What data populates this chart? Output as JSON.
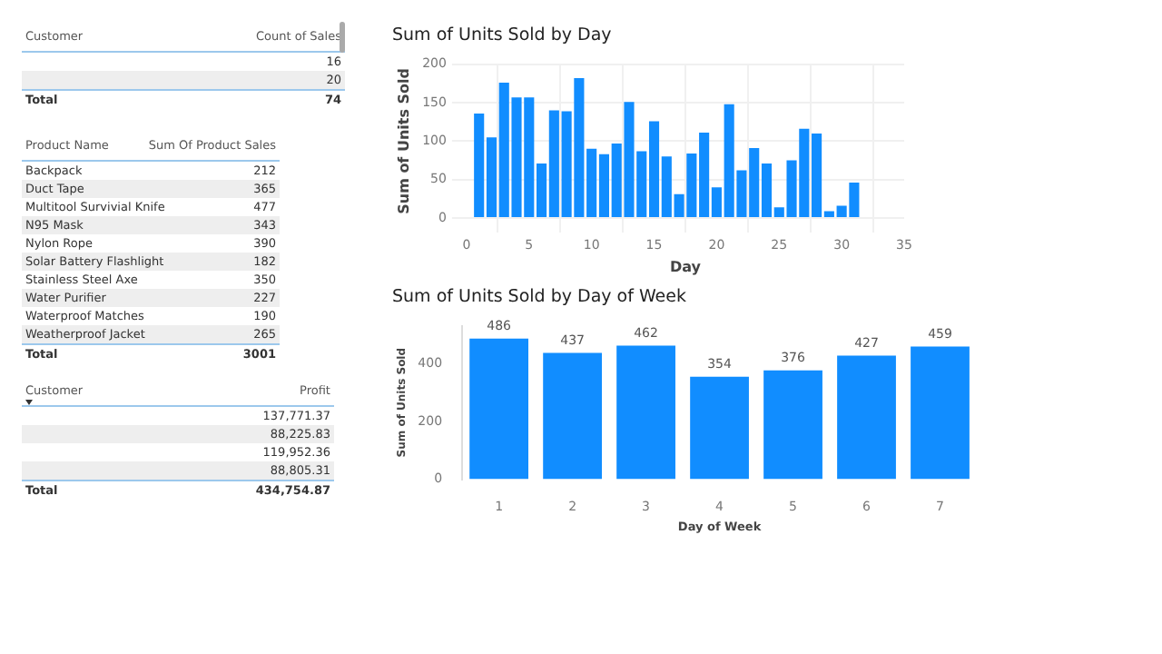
{
  "chart_data": [
    {
      "type": "other",
      "annotations": [
        "Customer",
        "Count of Sales",
        "Total"
      ],
      "categories": [
        null,
        null
      ],
      "values": [
        16,
        20
      ],
      "data_labels": true,
      "totals": [
        "74"
      ]
    },
    {
      "type": "other",
      "annotations": [
        "Product Name",
        "Sum Of Product Sales",
        "Total"
      ],
      "categories": [
        "Backpack",
        "Duct Tape",
        "Multitool Survivial Knife",
        "N95 Mask",
        "Nylon Rope",
        "Solar Battery Flashlight",
        "Stainless Steel Axe",
        "Water Purifier",
        "Waterproof Matches",
        "Weatherproof Jacket"
      ],
      "values": [
        212,
        365,
        477,
        343,
        390,
        182,
        350,
        227,
        190,
        265
      ],
      "data_labels": true,
      "totals": [
        "3001"
      ]
    },
    {
      "type": "other",
      "annotations": [
        "Customer",
        "Profit",
        "Total"
      ],
      "categories": [
        null,
        null,
        null,
        null
      ],
      "values": [
        137771.37,
        88225.83,
        119952.36,
        88805.31
      ],
      "value_labels": [
        "137,771.37",
        "88,225.83",
        "119,952.36",
        "88,805.31"
      ],
      "totals": [
        "434,754.87"
      ]
    },
    {
      "type": "bar",
      "title": "Sum of Units Sold by Day",
      "xlabel": "Day",
      "ylabel": "Sum of Units Sold",
      "color": "#118dff",
      "grid": true,
      "x": [
        1,
        2,
        3,
        4,
        5,
        6,
        7,
        8,
        9,
        10,
        11,
        12,
        13,
        14,
        15,
        16,
        17,
        18,
        19,
        20,
        21,
        22,
        23,
        24,
        25,
        26,
        27,
        28,
        29,
        30,
        31
      ],
      "values": [
        136,
        105,
        176,
        157,
        157,
        71,
        140,
        139,
        182,
        90,
        83,
        97,
        151,
        87,
        126,
        80,
        31,
        84,
        111,
        40,
        148,
        62,
        91,
        71,
        14,
        75,
        116,
        110,
        9,
        16,
        46
      ],
      "xlim": [
        0,
        35
      ],
      "xticks": [
        0,
        5,
        10,
        15,
        20,
        25,
        30,
        35
      ],
      "ylim": [
        0,
        200
      ],
      "yticks": [
        0,
        50,
        100,
        150,
        200
      ]
    },
    {
      "type": "bar",
      "title": "Sum of Units Sold by Day of Week",
      "xlabel": "Day of Week",
      "ylabel": "Sum of Units Sold",
      "color": "#118dff",
      "data_labels": true,
      "categories": [
        "1",
        "2",
        "3",
        "4",
        "5",
        "6",
        "7"
      ],
      "values": [
        486,
        437,
        462,
        354,
        376,
        427,
        459
      ],
      "ylim": [
        0,
        530
      ],
      "yticks": [
        0,
        200,
        400
      ]
    }
  ]
}
